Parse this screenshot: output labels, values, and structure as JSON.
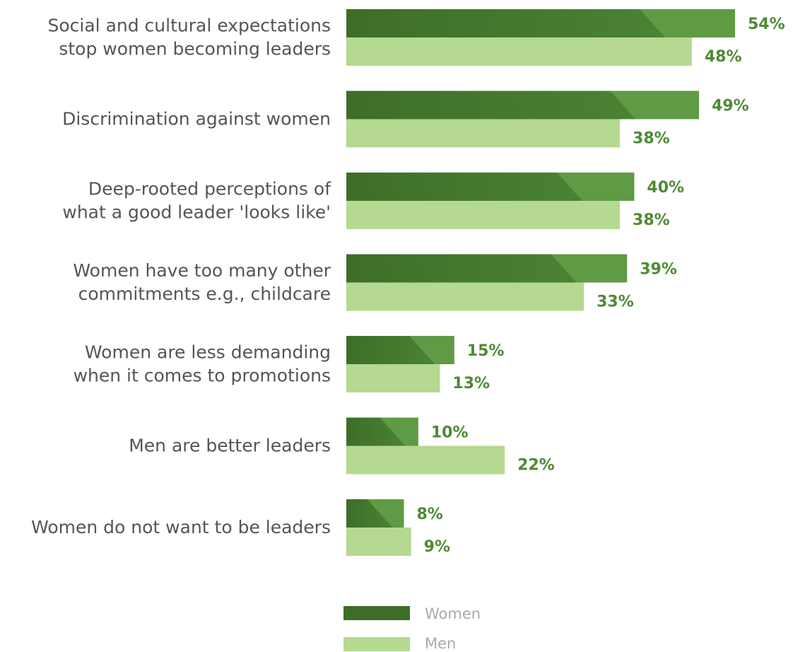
{
  "colors": {
    "women": "#5f9a45",
    "women_dark": "#3d6e28",
    "men": "#b5d991",
    "value_text": "#4f8a35",
    "category_text": "#555555",
    "legend_text": "#aaaaaa"
  },
  "chart_data": {
    "type": "bar",
    "orientation": "horizontal",
    "categories": [
      [
        "Social and cultural expectations",
        "stop women becoming leaders"
      ],
      [
        "Discrimination against women"
      ],
      [
        "Deep-rooted perceptions of",
        "what a good leader 'looks like'"
      ],
      [
        "Women have too many other",
        "commitments e.g., childcare"
      ],
      [
        "Women are less demanding",
        "when it comes to promotions"
      ],
      [
        "Men are better leaders"
      ],
      [
        "Women do not want to be leaders"
      ]
    ],
    "series": [
      {
        "name": "Women",
        "values": [
          54,
          49,
          40,
          39,
          15,
          10,
          8
        ],
        "labels": [
          "54%",
          "49%",
          "40%",
          "39%",
          "15%",
          "10%",
          "8%"
        ]
      },
      {
        "name": "Men",
        "values": [
          48,
          38,
          38,
          33,
          13,
          22,
          9
        ],
        "labels": [
          "48%",
          "38%",
          "38%",
          "33%",
          "13%",
          "22%",
          "9%"
        ]
      }
    ],
    "xlim": [
      0,
      54
    ],
    "grid": false,
    "legend_position": "bottom"
  }
}
